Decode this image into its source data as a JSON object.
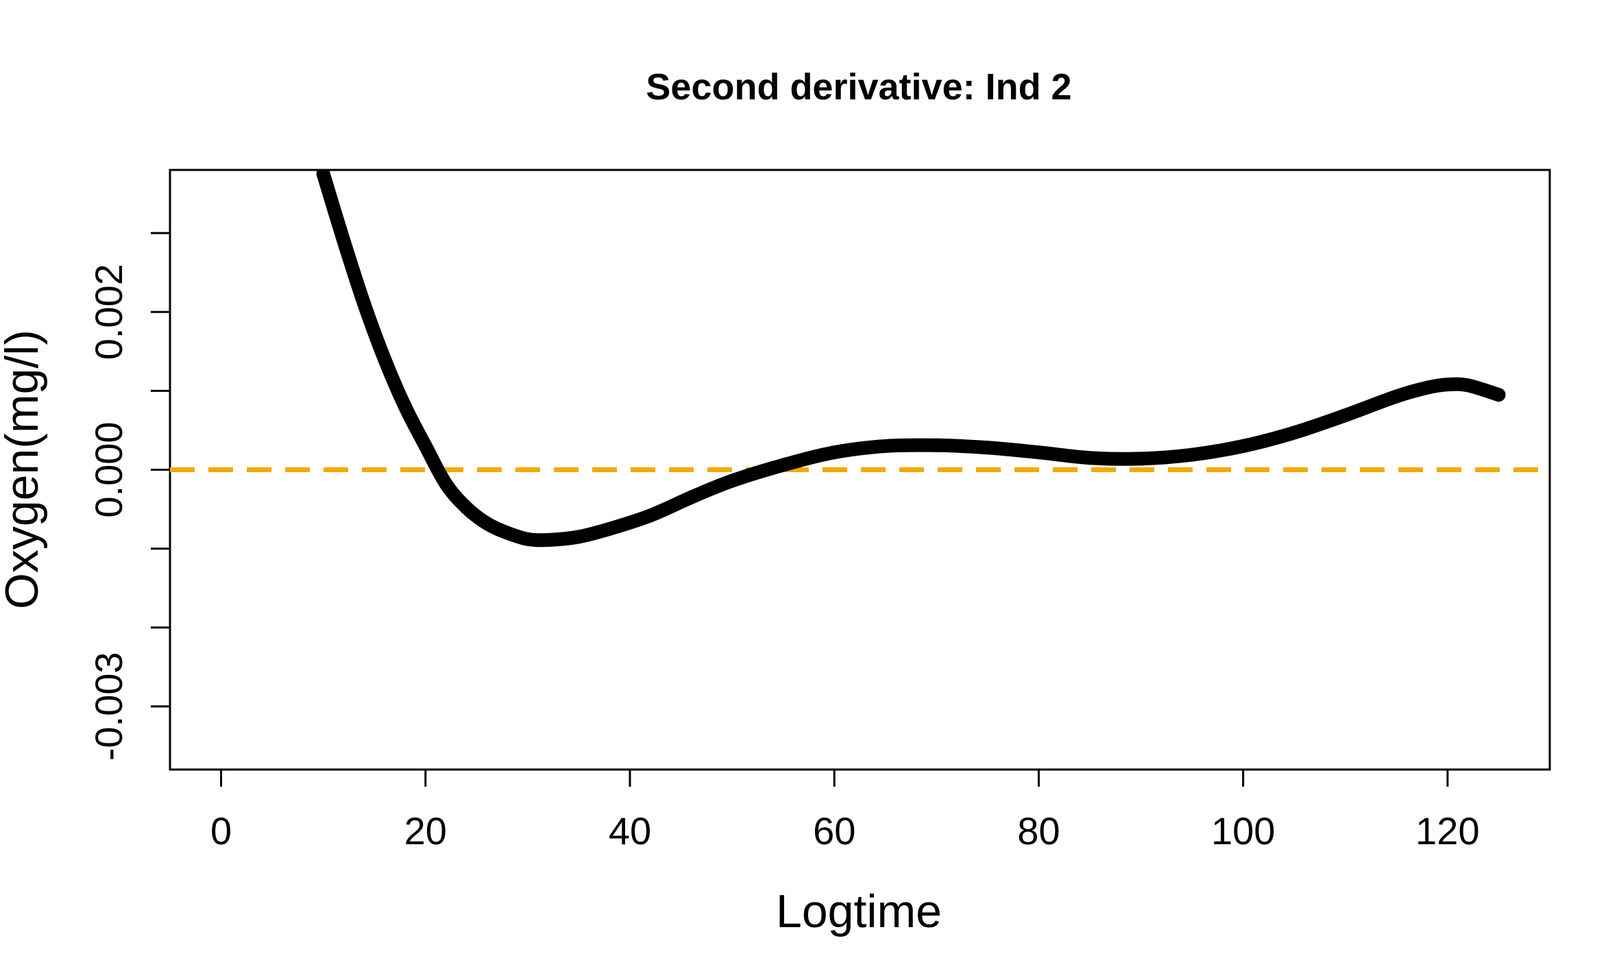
{
  "chart_data": {
    "type": "line",
    "title": "Second derivative: Ind 2",
    "xlabel": "Logtime",
    "ylabel": "Oxygen(mg/l)",
    "xlim": [
      -5,
      130
    ],
    "ylim": [
      -0.0038,
      0.0038
    ],
    "x_ticks": [
      0,
      20,
      40,
      60,
      80,
      100,
      120
    ],
    "x_tick_labels": [
      "0",
      "20",
      "40",
      "60",
      "80",
      "100",
      "120"
    ],
    "y_ticks": [
      -0.003,
      -0.002,
      -0.001,
      0.0,
      0.001,
      0.002,
      0.003
    ],
    "y_tick_labels": [
      {
        "value": -0.003,
        "label": "-0.003"
      },
      {
        "value": 0.0,
        "label": "0.000"
      },
      {
        "value": 0.002,
        "label": "0.002"
      }
    ],
    "grid": false,
    "reference_line": {
      "y": 0.0,
      "color": "#F5A800",
      "style": "dashed"
    },
    "series": [
      {
        "color": "#000000",
        "style": "thick-points",
        "x": [
          10,
          12,
          14,
          16,
          18,
          20,
          22,
          24,
          26,
          28,
          30,
          32,
          35,
          38,
          42,
          46,
          50,
          55,
          60,
          65,
          70,
          75,
          80,
          85,
          90,
          95,
          100,
          105,
          110,
          115,
          118,
          120,
          122,
          125
        ],
        "y": [
          0.00375,
          0.0029,
          0.0021,
          0.0014,
          0.0008,
          0.0003,
          -0.00018,
          -0.00048,
          -0.00068,
          -0.0008,
          -0.00088,
          -0.00089,
          -0.00085,
          -0.00075,
          -0.00058,
          -0.00035,
          -0.00014,
          6e-05,
          0.00022,
          0.0003,
          0.00031,
          0.00028,
          0.00022,
          0.00015,
          0.00014,
          0.00019,
          0.0003,
          0.00047,
          0.00069,
          0.00093,
          0.00104,
          0.00108,
          0.00107,
          0.00095
        ]
      }
    ]
  }
}
